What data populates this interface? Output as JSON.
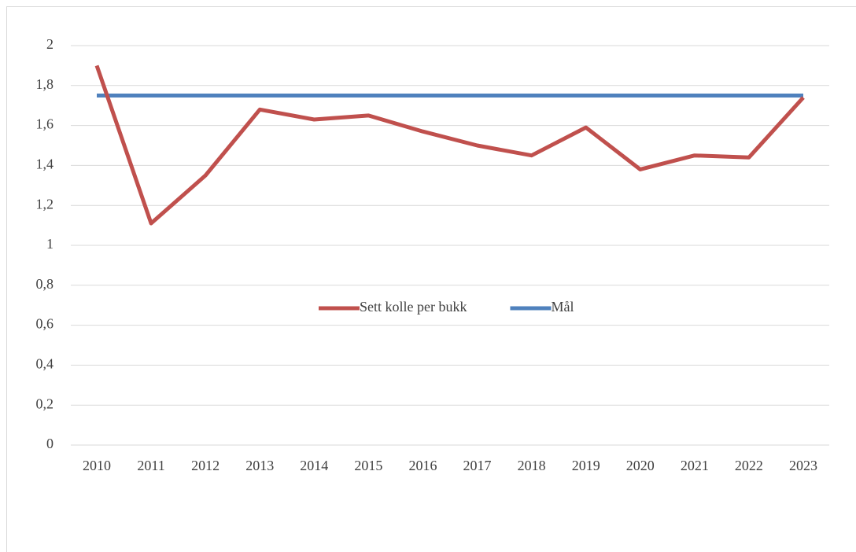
{
  "chart_data": {
    "type": "line",
    "categories": [
      "2010",
      "2011",
      "2012",
      "2013",
      "2014",
      "2015",
      "2016",
      "2017",
      "2018",
      "2019",
      "2020",
      "2021",
      "2022",
      "2023"
    ],
    "series": [
      {
        "name": "Sett kolle per bukk",
        "color": "#c0504d",
        "values": [
          1.9,
          1.11,
          1.35,
          1.68,
          1.63,
          1.65,
          1.57,
          1.5,
          1.45,
          1.59,
          1.38,
          1.45,
          1.44,
          1.74
        ]
      },
      {
        "name": "Mål",
        "color": "#4f81bd",
        "values": [
          1.75,
          1.75,
          1.75,
          1.75,
          1.75,
          1.75,
          1.75,
          1.75,
          1.75,
          1.75,
          1.75,
          1.75,
          1.75,
          1.75
        ]
      }
    ],
    "ylim": [
      0,
      2
    ],
    "yticks": [
      0,
      {
        "value": 0.2,
        "label": "0,2"
      },
      {
        "value": 0.4,
        "label": "0,4"
      },
      {
        "value": 0.6,
        "label": "0,6"
      },
      {
        "value": 0.8,
        "label": "0,8"
      },
      1,
      {
        "value": 1.2,
        "label": "1,2"
      },
      {
        "value": 1.4,
        "label": "1,4"
      },
      {
        "value": 1.6,
        "label": "1,6"
      },
      {
        "value": 1.8,
        "label": "1,8"
      },
      2
    ],
    "grid": true,
    "legend": "center"
  }
}
